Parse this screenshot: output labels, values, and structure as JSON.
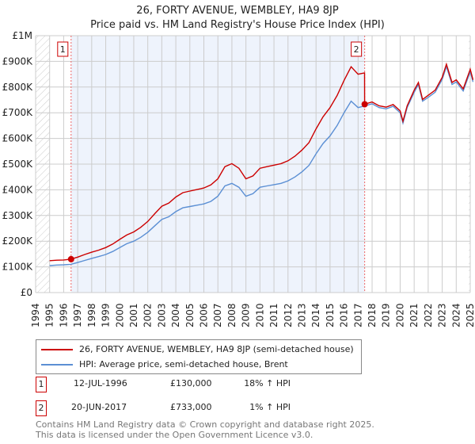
{
  "chart_data": {
    "type": "line",
    "title": "26, FORTY AVENUE, WEMBLEY, HA9 8JP",
    "subtitle": "Price paid vs. HM Land Registry's House Price Index (HPI)",
    "xlim": [
      1994,
      2025
    ],
    "ylim": [
      0,
      1000000
    ],
    "y_ticks": [
      {
        "v": 0,
        "label": "£0"
      },
      {
        "v": 100000,
        "label": "£100K"
      },
      {
        "v": 200000,
        "label": "£200K"
      },
      {
        "v": 300000,
        "label": "£300K"
      },
      {
        "v": 400000,
        "label": "£400K"
      },
      {
        "v": 500000,
        "label": "£500K"
      },
      {
        "v": 600000,
        "label": "£600K"
      },
      {
        "v": 700000,
        "label": "£700K"
      },
      {
        "v": 800000,
        "label": "£800K"
      },
      {
        "v": 900000,
        "label": "£900K"
      },
      {
        "v": 1000000,
        "label": "£1M"
      }
    ],
    "x_ticks": [
      "1994",
      "1995",
      "1996",
      "1997",
      "1998",
      "1999",
      "2000",
      "2001",
      "2002",
      "2003",
      "2004",
      "2005",
      "2006",
      "2007",
      "2008",
      "2009",
      "2010",
      "2011",
      "2012",
      "2013",
      "2014",
      "2015",
      "2016",
      "2017",
      "2018",
      "2019",
      "2020",
      "2021",
      "2022",
      "2023",
      "2024",
      "2025"
    ],
    "shaded_range": [
      1996.53,
      2017.47
    ],
    "series": [
      {
        "name": "26, FORTY AVENUE, WEMBLEY, HA9 8JP (semi-detached house)",
        "color": "#cc0000",
        "x": [
          1995,
          1995.5,
          1996,
          1996.5,
          1997,
          1997.5,
          1998,
          1998.5,
          1999,
          1999.5,
          2000,
          2000.5,
          2001,
          2001.5,
          2002,
          2002.5,
          2003,
          2003.5,
          2004,
          2004.5,
          2005,
          2005.5,
          2006,
          2006.5,
          2007,
          2007.5,
          2008,
          2008.5,
          2009,
          2009.5,
          2010,
          2010.5,
          2011,
          2011.5,
          2012,
          2012.5,
          2013,
          2013.5,
          2014,
          2014.5,
          2015,
          2015.5,
          2016,
          2016.5,
          2017,
          2017.46,
          2017.47,
          2017.5,
          2018,
          2018.5,
          2019,
          2019.5,
          2020,
          2020.2,
          2020.5,
          2021,
          2021.3,
          2021.6,
          2022,
          2022.5,
          2023,
          2023.3,
          2023.7,
          2024,
          2024.5,
          2025,
          2025.2
        ],
        "y": [
          124000,
          126000,
          127000,
          130000,
          138000,
          148000,
          157000,
          165000,
          175000,
          189000,
          207000,
          224000,
          236000,
          254000,
          277000,
          307000,
          336000,
          348000,
          372000,
          389000,
          395000,
          401000,
          407000,
          419000,
          443000,
          490000,
          502000,
          484000,
          443000,
          454000,
          484000,
          490000,
          496000,
          502000,
          513000,
          531000,
          555000,
          584000,
          637000,
          684000,
          720000,
          767000,
          826000,
          879000,
          850000,
          855000,
          733000,
          734000,
          742000,
          727000,
          722000,
          732000,
          707000,
          667000,
          727000,
          788000,
          818000,
          752000,
          768000,
          788000,
          838000,
          889000,
          818000,
          828000,
          793000,
          869000,
          828000
        ]
      },
      {
        "name": "HPI: Average price, semi-detached house, Brent",
        "color": "#5b8fd4",
        "x": [
          1995,
          1995.5,
          1996,
          1996.5,
          1997,
          1997.5,
          1998,
          1998.5,
          1999,
          1999.5,
          2000,
          2000.5,
          2001,
          2001.5,
          2002,
          2002.5,
          2003,
          2003.5,
          2004,
          2004.5,
          2005,
          2005.5,
          2006,
          2006.5,
          2007,
          2007.5,
          2008,
          2008.5,
          2009,
          2009.5,
          2010,
          2010.5,
          2011,
          2011.5,
          2012,
          2012.5,
          2013,
          2013.5,
          2014,
          2014.5,
          2015,
          2015.5,
          2016,
          2016.5,
          2017,
          2017.5,
          2018,
          2018.5,
          2019,
          2019.5,
          2020,
          2020.2,
          2020.5,
          2021,
          2021.3,
          2021.6,
          2022,
          2022.5,
          2023,
          2023.3,
          2023.7,
          2024,
          2024.5,
          2025,
          2025.2
        ],
        "y": [
          105000,
          107000,
          108000,
          110000,
          117000,
          125000,
          133000,
          140000,
          148000,
          160000,
          175000,
          190000,
          200000,
          215000,
          235000,
          260000,
          285000,
          295000,
          315000,
          330000,
          335000,
          340000,
          345000,
          355000,
          375000,
          415000,
          425000,
          410000,
          375000,
          385000,
          410000,
          415000,
          420000,
          425000,
          435000,
          450000,
          470000,
          495000,
          540000,
          580000,
          610000,
          650000,
          700000,
          745000,
          720000,
          727000,
          735000,
          720000,
          715000,
          725000,
          700000,
          660000,
          720000,
          780000,
          810000,
          745000,
          760000,
          780000,
          830000,
          880000,
          810000,
          820000,
          785000,
          860000,
          820000
        ]
      }
    ],
    "transactions": [
      {
        "num": "1",
        "x": 1996.53,
        "price": 130000,
        "date": "12-JUL-1996",
        "price_label": "£130,000",
        "hpi": "18% ↑ HPI"
      },
      {
        "num": "2",
        "x": 2017.47,
        "price": 733000,
        "date": "20-JUN-2017",
        "price_label": "£733,000",
        "hpi": "1% ↑ HPI"
      }
    ]
  },
  "footer": {
    "line1": "Contains HM Land Registry data © Crown copyright and database right 2025.",
    "line2": "This data is licensed under the Open Government Licence v3.0."
  }
}
